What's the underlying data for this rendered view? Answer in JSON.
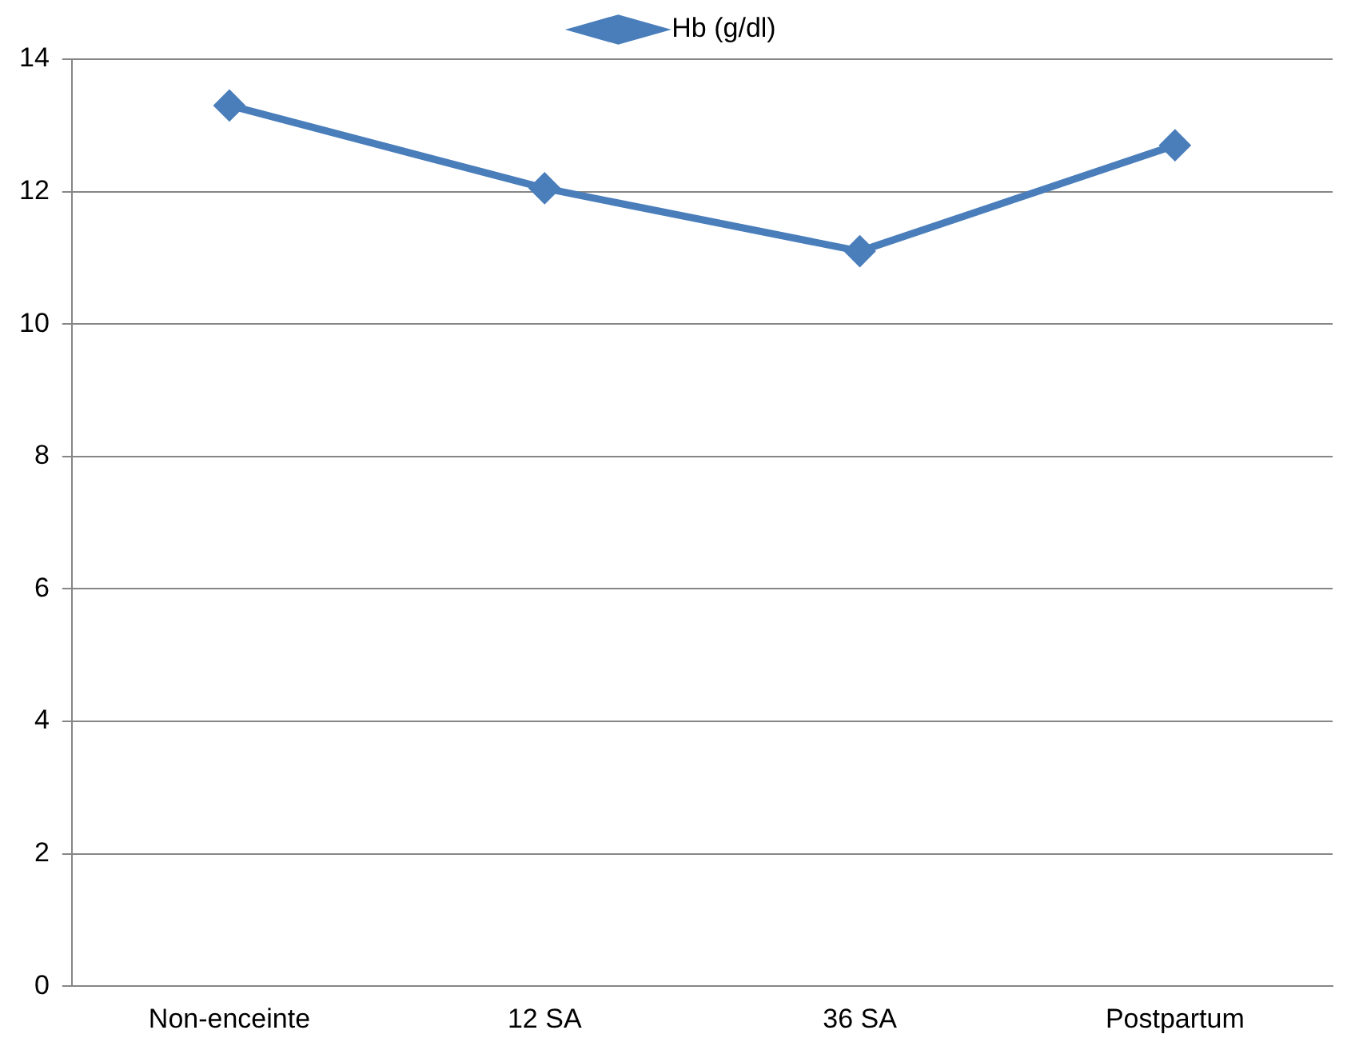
{
  "chart_data": {
    "type": "line",
    "categories": [
      "Non-enceinte",
      "12 SA",
      "36 SA",
      "Postpartum"
    ],
    "series": [
      {
        "name": "Hb (g/dl)",
        "color": "#4a7ebb",
        "values": [
          13.3,
          12.05,
          11.1,
          12.7
        ]
      }
    ],
    "ylim": [
      0,
      14
    ],
    "yticks": [
      0,
      2,
      4,
      6,
      8,
      10,
      12,
      14
    ],
    "grid": "y",
    "legend": "top",
    "marker": "diamond",
    "line_style": "solid"
  }
}
